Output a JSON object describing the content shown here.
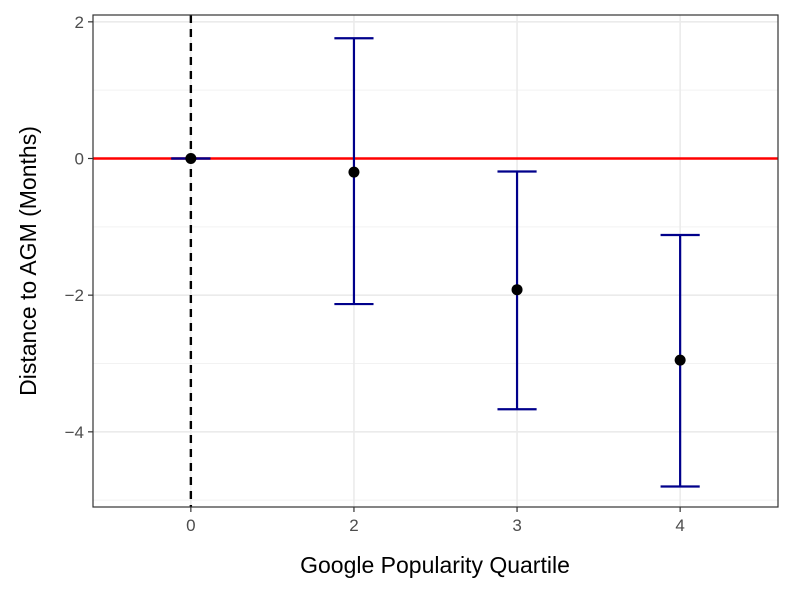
{
  "chart_data": {
    "type": "scatter",
    "title": "",
    "xlabel": "Google Popularity Quartile",
    "ylabel": "Distance to AGM (Months)",
    "categories": [
      "0",
      "2",
      "3",
      "4"
    ],
    "series": [
      {
        "points": [
          {
            "x": "0",
            "y": 0.0,
            "lower": 0.0,
            "upper": 0.0
          },
          {
            "x": "2",
            "y": -0.2,
            "lower": -2.13,
            "upper": 1.76
          },
          {
            "x": "3",
            "y": -1.92,
            "lower": -3.67,
            "upper": -0.19
          },
          {
            "x": "4",
            "y": -2.95,
            "lower": -4.8,
            "upper": -1.12
          }
        ],
        "point_color": "#000000",
        "errorbar_color": "#00008b"
      }
    ],
    "y_ticks": [
      2,
      0,
      -2,
      -4
    ],
    "y_tick_labels": [
      "2",
      "0",
      "−2",
      "−4"
    ],
    "ylim": [
      -5.1,
      2.1
    ],
    "reference_lines": [
      {
        "orientation": "horizontal",
        "value": 0,
        "color": "#ff0000",
        "style": "solid"
      },
      {
        "orientation": "vertical",
        "value": "0",
        "color": "#000000",
        "style": "dashed"
      }
    ],
    "grid": true,
    "legend": "none"
  }
}
